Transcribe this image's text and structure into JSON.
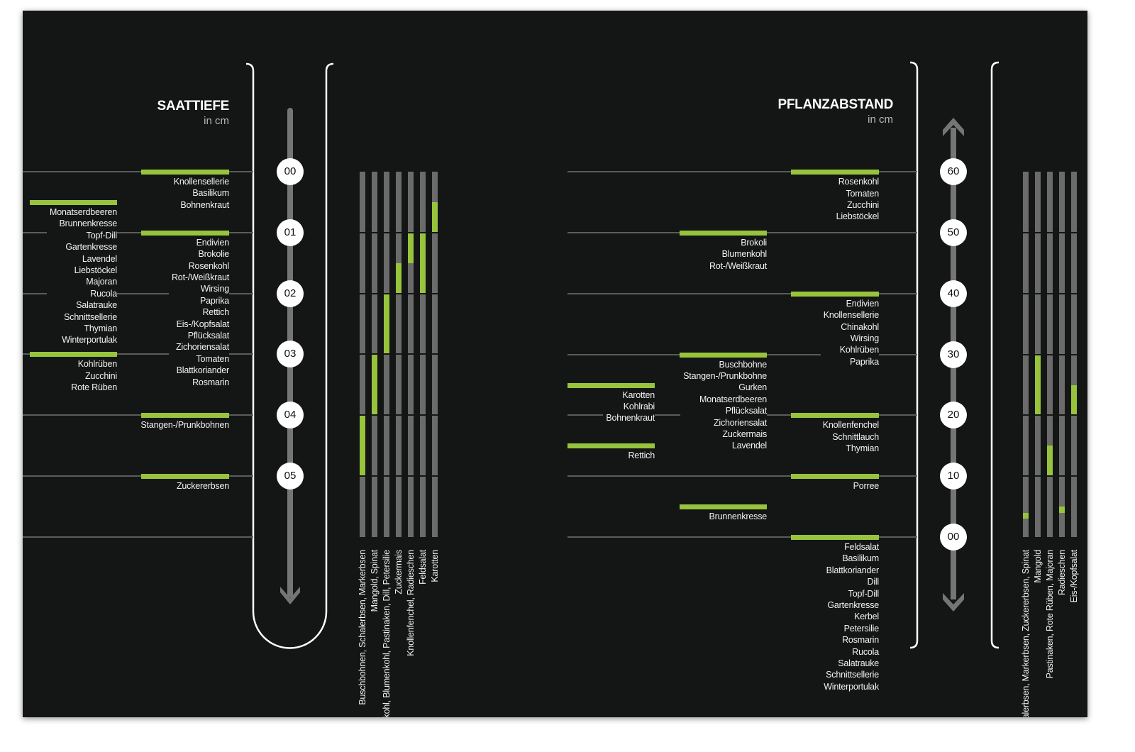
{
  "colors": {
    "background": "#141515",
    "accent_green": "#97c43c",
    "bar_gray": "#6b6b6b",
    "line_gray": "#5a5b5b",
    "text": "#f2f2f2"
  },
  "saattiefe": {
    "title": "SAATTIEFE",
    "unit": "in cm",
    "ticks": [
      "00",
      "01",
      "02",
      "03",
      "04",
      "05"
    ],
    "scale_direction": "down",
    "groups": [
      {
        "value": 0,
        "plants": [
          "Knollensellerie",
          "Basilikum",
          "Bohnenkraut"
        ]
      },
      {
        "value": 0.5,
        "plants": [
          "Monatserdbeeren",
          "Brunnenkresse",
          "Topf-Dill",
          "Gartenkresse",
          "Lavendel",
          "Liebstöckel",
          "Majoran",
          "Rucola",
          "Salatrauke",
          "Schnittsellerie",
          "Thymian",
          "Winterportulak"
        ]
      },
      {
        "value": 1,
        "plants": [
          "Endivien",
          "Brokolie",
          "Rosenkohl",
          "Rot-/Weißkraut",
          "Wirsing",
          "Paprika",
          "Rettich",
          "Eis-/Kopfsalat",
          "Pflücksalat",
          "Zichoriensalat",
          "Tomaten",
          "Blattkoriander",
          "Rosmarin"
        ]
      },
      {
        "value": 3,
        "plants": [
          "Kohlrüben",
          "Zucchini",
          "Rote Rüben"
        ]
      },
      {
        "value": 4,
        "plants": [
          "Stangen-/Prunkbohnen"
        ]
      },
      {
        "value": 5,
        "plants": [
          "Zuckererbsen"
        ]
      }
    ],
    "range_bars": [
      {
        "label": "Buschbohnen, Schalerbsen, Markerbsen",
        "range": [
          4,
          5
        ]
      },
      {
        "label": "Mangold, Spinat",
        "range": [
          3,
          4
        ]
      },
      {
        "label": "kohl, Blumenkohl, Pastinaken, Dill, Petersilie",
        "range": [
          2,
          3
        ]
      },
      {
        "label": "Zuckermais",
        "range": [
          1.5,
          2
        ]
      },
      {
        "label": "Knollenfenchel, Radieschen",
        "range": [
          1,
          1.5
        ]
      },
      {
        "label": "Feldsalat",
        "range": [
          1,
          2
        ]
      },
      {
        "label": "Karotten",
        "range": [
          0.5,
          1
        ]
      }
    ]
  },
  "pflanzabstand": {
    "title": "PFLANZABSTAND",
    "unit": "in cm",
    "ticks": [
      "60",
      "50",
      "40",
      "30",
      "20",
      "10",
      "00"
    ],
    "scale_direction": "both",
    "groups": [
      {
        "value": 60,
        "plants": [
          "Rosenkohl",
          "Tomaten",
          "Zucchini",
          "Liebstöckel"
        ]
      },
      {
        "value": 50,
        "plants": [
          "Brokoli",
          "Blumenkohl",
          "Rot-/Weißkraut"
        ]
      },
      {
        "value": 40,
        "plants": [
          "Endivien",
          "Knollensellerie",
          "Chinakohl",
          "Wirsing",
          "Kohlrüben",
          "Paprika"
        ]
      },
      {
        "value": 30,
        "plants": [
          "Buschbohne",
          "Stangen-/Prunkbohne",
          "Gurken",
          "Monatserdbeeren",
          "Pflücksalat",
          "Zichoriensalat",
          "Zuckermais",
          "Lavendel"
        ]
      },
      {
        "value": 25,
        "plants": [
          "Karotten",
          "Kohlrabi",
          "Bohnenkraut"
        ]
      },
      {
        "value": 20,
        "plants": [
          "Knollenfenchel",
          "Schnittlauch",
          "Thymian"
        ]
      },
      {
        "value": 15,
        "plants": [
          "Rettich"
        ]
      },
      {
        "value": 10,
        "plants": [
          "Porree"
        ]
      },
      {
        "value": 5,
        "plants": [
          "Brunnenkresse"
        ]
      },
      {
        "value": 0,
        "plants": [
          "Feldsalat",
          "Basilikum",
          "Blattkoriander",
          "Dill",
          "Topf-Dill",
          "Gartenkresse",
          "Kerbel",
          "Petersilie",
          "Rosmarin",
          "Rucola",
          "Salatrauke",
          "Schnittsellerie",
          "Winterportulak"
        ]
      }
    ],
    "range_bars": [
      {
        "label": "alerbsen, Markerbsen, Zuckererbsen, Spinat",
        "range": [
          3,
          4
        ]
      },
      {
        "label": "Mangold",
        "range": [
          20,
          30
        ]
      },
      {
        "label": "Pastinaken, Rote Rüben, Majoran",
        "range": [
          10,
          15
        ]
      },
      {
        "label": "Radieschen",
        "range": [
          4,
          5
        ]
      },
      {
        "label": "Eis-/Kopfsalat",
        "range": [
          20,
          25
        ]
      }
    ]
  }
}
